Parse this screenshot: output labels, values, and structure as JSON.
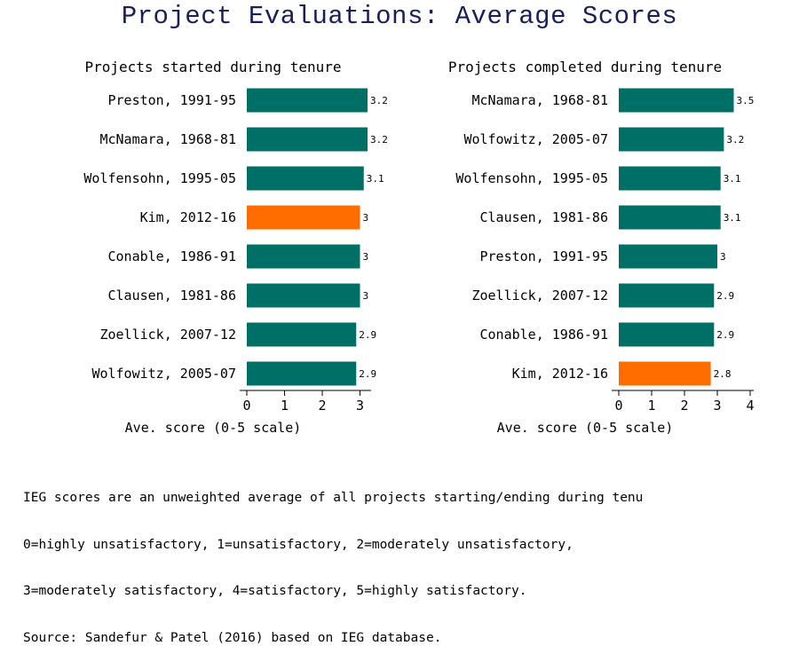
{
  "title": "Project Evaluations: Average Scores",
  "colors": {
    "bar_default": "#007066",
    "bar_highlight": "#ff6c00",
    "title": "#1a1f5c"
  },
  "chart_data": [
    {
      "type": "bar",
      "orientation": "horizontal",
      "title": "Projects started during tenure",
      "categories": [
        "Preston, 1991-95",
        "McNamara, 1968-81",
        "Wolfensohn, 1995-05",
        "Kim, 2012-16",
        "Conable, 1986-91",
        "Clausen, 1981-86",
        "Zoellick, 2007-12",
        "Wolfowitz, 2005-07"
      ],
      "values": [
        3.2,
        3.2,
        3.1,
        3.0,
        3.0,
        3.0,
        2.9,
        2.9
      ],
      "value_labels": [
        "3.2",
        "3.2",
        "3.1",
        "3",
        "3",
        "3",
        "2.9",
        "2.9"
      ],
      "highlight": [
        "Kim, 2012-16"
      ],
      "xlabel": "Ave. score (0-5 scale)",
      "xticks": [
        "0",
        "1",
        "2",
        "3"
      ],
      "xlim": [
        0,
        3.2
      ]
    },
    {
      "type": "bar",
      "orientation": "horizontal",
      "title": "Projects completed during tenure",
      "categories": [
        "McNamara, 1968-81",
        "Wolfowitz, 2005-07",
        "Wolfensohn, 1995-05",
        "Clausen, 1981-86",
        "Preston, 1991-95",
        "Zoellick, 2007-12",
        "Conable, 1986-91",
        "Kim, 2012-16"
      ],
      "values": [
        3.5,
        3.2,
        3.1,
        3.1,
        3.0,
        2.9,
        2.9,
        2.8
      ],
      "value_labels": [
        "3.5",
        "3.2",
        "3.1",
        "3.1",
        "3",
        "2.9",
        "2.9",
        "2.8"
      ],
      "highlight": [
        "Kim, 2012-16"
      ],
      "xlabel": "Ave. score (0-5 scale)",
      "xticks": [
        "0",
        "1",
        "2",
        "3",
        "4"
      ],
      "xlim": [
        0,
        4
      ]
    }
  ],
  "footnote": {
    "line1": "IEG scores are an unweighted average of all projects starting/ending during tenu",
    "line2": "0=highly unsatisfactory, 1=unsatisfactory, 2=moderately unsatisfactory,",
    "line3": "3=moderately satisfactory, 4=satisfactory, 5=highly satisfactory.",
    "line4": "Source: Sandefur & Patel (2016) based on IEG database."
  }
}
